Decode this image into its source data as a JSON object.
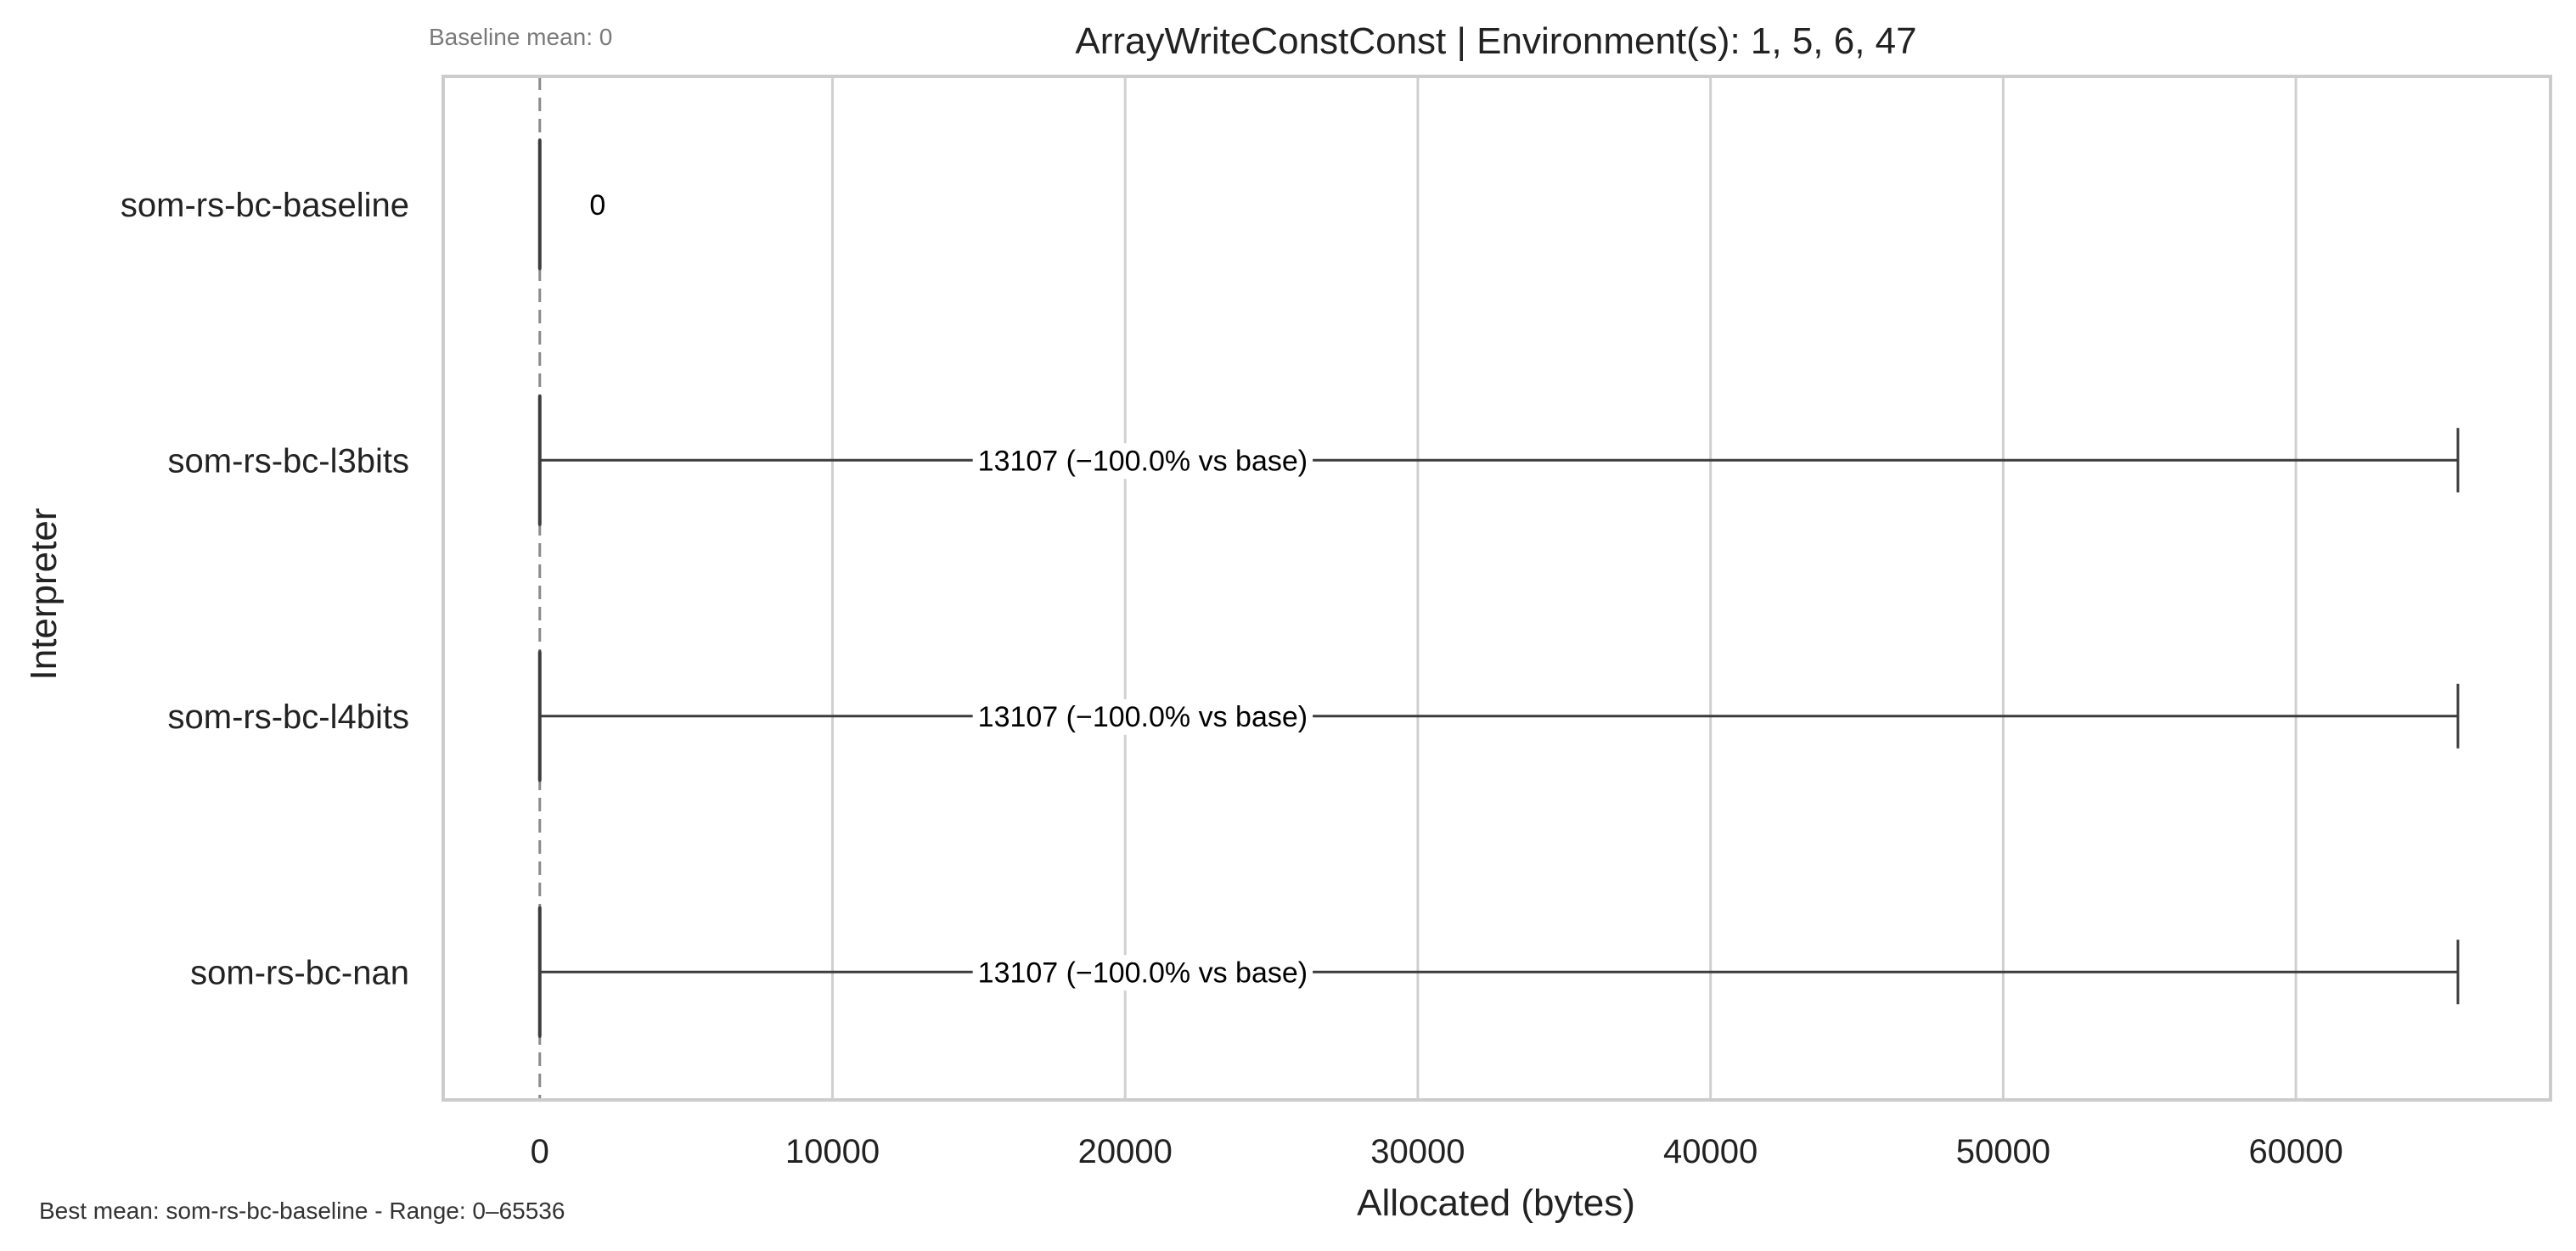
{
  "chart_data": {
    "type": "box",
    "title": "ArrayWriteConstConst | Environment(s): 1, 5, 6, 47",
    "xlabel": "Allocated (bytes)",
    "ylabel": "Interpreter",
    "xlim": [
      -3300,
      68700
    ],
    "xticks": [
      0,
      10000,
      20000,
      30000,
      40000,
      50000,
      60000
    ],
    "xtick_labels": [
      "0",
      "10000",
      "20000",
      "30000",
      "40000",
      "50000",
      "60000"
    ],
    "grid": "vertical",
    "legend": "none",
    "baseline_value": 0,
    "baseline_note": "Baseline mean: 0",
    "footer_note": "Best mean: som-rs-bc-baseline - Range: 0–65536",
    "series": [
      {
        "category": "som-rs-bc-baseline",
        "min": 0,
        "q1": 0,
        "median": 0,
        "q3": 0,
        "max": 0,
        "mean_label": "0",
        "label_x": 1700
      },
      {
        "category": "som-rs-bc-l3bits",
        "min": 0,
        "q1": 0,
        "median": 0,
        "q3": 0,
        "max": 65536,
        "mean_label": "13107  (−100.0% vs base)",
        "label_x": 20600
      },
      {
        "category": "som-rs-bc-l4bits",
        "min": 0,
        "q1": 0,
        "median": 0,
        "q3": 0,
        "max": 65536,
        "mean_label": "13107  (−100.0% vs base)",
        "label_x": 20600
      },
      {
        "category": "som-rs-bc-nan",
        "min": 0,
        "q1": 0,
        "median": 0,
        "q3": 0,
        "max": 65536,
        "mean_label": "13107  (−100.0% vs base)",
        "label_x": 20600
      }
    ],
    "colors": {
      "frame": "#cccccc",
      "grid": "#d0d0d0",
      "box_line": "#3c3c3c",
      "baseline": "#8a8a8a"
    }
  }
}
